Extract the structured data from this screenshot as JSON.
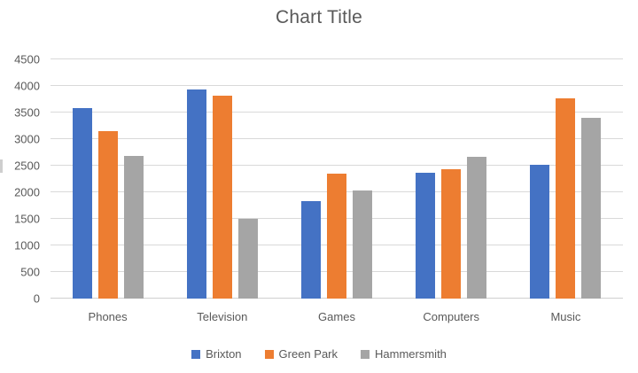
{
  "chart_data": {
    "type": "bar",
    "title": "Chart Title",
    "categories": [
      "Phones",
      "Television",
      "Games",
      "Computers",
      "Music"
    ],
    "series": [
      {
        "name": "Brixton",
        "color": "#4472C4",
        "values": [
          3580,
          3930,
          1830,
          2370,
          2510
        ]
      },
      {
        "name": "Green Park",
        "color": "#ED7D31",
        "values": [
          3150,
          3820,
          2350,
          2430,
          3770
        ]
      },
      {
        "name": "Hammersmith",
        "color": "#A5A5A5",
        "values": [
          2690,
          1500,
          2040,
          2660,
          3400
        ]
      }
    ],
    "ylim": [
      0,
      4500
    ],
    "yticks": [
      0,
      500,
      1000,
      1500,
      2000,
      2500,
      3000,
      3500,
      4000,
      4500
    ],
    "xlabel": "",
    "ylabel": "",
    "grid": true,
    "legend_position": "bottom",
    "colors": {
      "text": "#595959",
      "gridline": "#D9D9D9",
      "axis_line": "#D0D0D0",
      "background": "#FFFFFF"
    }
  }
}
